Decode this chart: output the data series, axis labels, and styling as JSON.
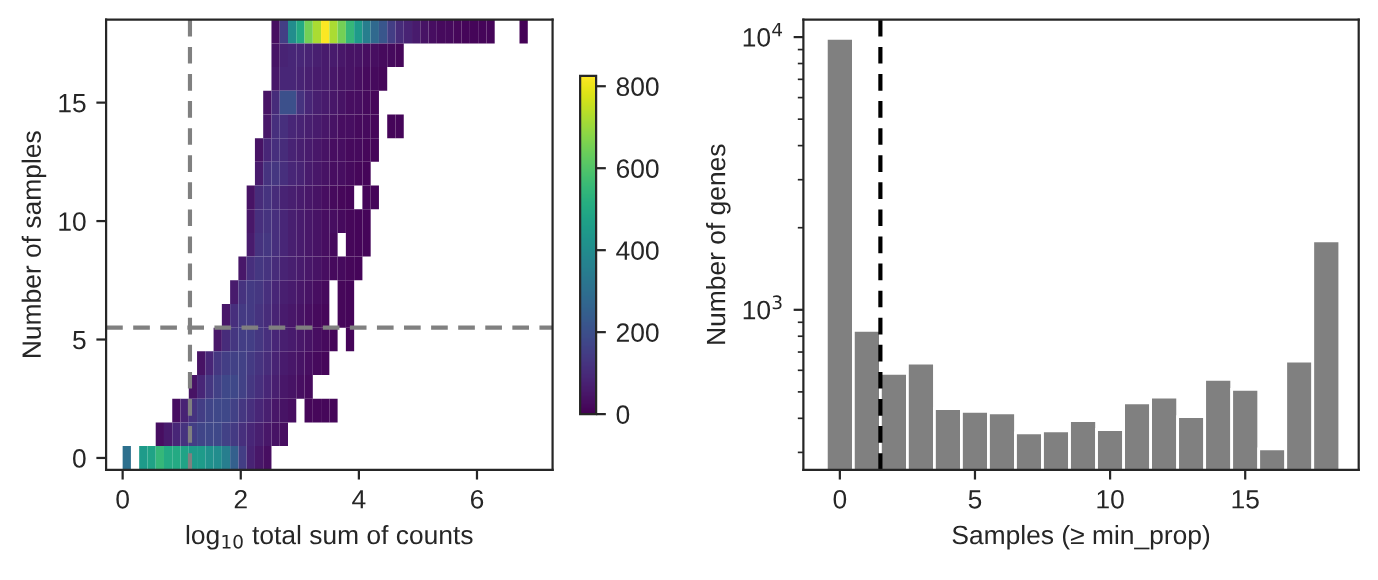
{
  "chart_data": [
    {
      "type": "heatmap",
      "xlabel": "log$_{10}$ total sum of counts",
      "ylabel": "Number of samples",
      "cells": [
        [
          null,
          null,
          null,
          null,
          null,
          null,
          null,
          null,
          null,
          null,
          null,
          null,
          null,
          null,
          null,
          null,
          null,
          null,
          null,
          null,
          30,
          150,
          400,
          500,
          650,
          720,
          820,
          720,
          650,
          550,
          450,
          350,
          280,
          220,
          150,
          100,
          80,
          60,
          40,
          30,
          20,
          20,
          15,
          10,
          10,
          10,
          10,
          null,
          null,
          null,
          5,
          null,
          null,
          null
        ],
        [
          null,
          null,
          null,
          null,
          null,
          null,
          null,
          null,
          null,
          null,
          null,
          null,
          null,
          null,
          null,
          null,
          null,
          null,
          null,
          null,
          40,
          80,
          90,
          90,
          80,
          70,
          60,
          60,
          50,
          40,
          40,
          30,
          30,
          20,
          20,
          15,
          null,
          null,
          null,
          null,
          null,
          null,
          null,
          null,
          null,
          null,
          null,
          null,
          null,
          null,
          null,
          null,
          null,
          null
        ],
        [
          null,
          null,
          null,
          null,
          null,
          null,
          null,
          null,
          null,
          null,
          null,
          null,
          null,
          null,
          null,
          null,
          null,
          null,
          null,
          null,
          50,
          90,
          90,
          80,
          70,
          60,
          60,
          50,
          40,
          40,
          30,
          20,
          20,
          15,
          null,
          null,
          null,
          null,
          null,
          null,
          null,
          null,
          null,
          null,
          null,
          null,
          null,
          null,
          null,
          null,
          null,
          null,
          null,
          null
        ],
        [
          null,
          null,
          null,
          null,
          null,
          null,
          null,
          null,
          null,
          null,
          null,
          null,
          null,
          null,
          null,
          null,
          null,
          null,
          null,
          40,
          100,
          200,
          200,
          120,
          90,
          70,
          60,
          50,
          40,
          30,
          30,
          20,
          15,
          null,
          null,
          null,
          null,
          null,
          null,
          null,
          null,
          null,
          null,
          null,
          null,
          null,
          null,
          null,
          null,
          null,
          null,
          null,
          null,
          null
        ],
        [
          null,
          null,
          null,
          null,
          null,
          null,
          null,
          null,
          null,
          null,
          null,
          null,
          null,
          null,
          null,
          null,
          null,
          null,
          null,
          50,
          110,
          110,
          90,
          80,
          70,
          60,
          50,
          40,
          30,
          30,
          20,
          20,
          15,
          null,
          10,
          10,
          null,
          null,
          null,
          null,
          null,
          null,
          null,
          null,
          null,
          null,
          null,
          null,
          null,
          null,
          null,
          null,
          null,
          null
        ],
        [
          null,
          null,
          null,
          null,
          null,
          null,
          null,
          null,
          null,
          null,
          null,
          null,
          null,
          null,
          null,
          null,
          null,
          null,
          40,
          90,
          110,
          100,
          80,
          70,
          60,
          50,
          40,
          30,
          30,
          20,
          20,
          15,
          10,
          null,
          null,
          null,
          null,
          null,
          null,
          null,
          null,
          null,
          null,
          null,
          null,
          null,
          null,
          null,
          null,
          null,
          null,
          null,
          null,
          null
        ],
        [
          null,
          null,
          null,
          null,
          null,
          null,
          null,
          null,
          null,
          null,
          null,
          null,
          null,
          null,
          null,
          null,
          null,
          null,
          60,
          120,
          130,
          110,
          90,
          80,
          60,
          50,
          40,
          30,
          30,
          20,
          15,
          10,
          null,
          null,
          null,
          null,
          null,
          null,
          null,
          null,
          null,
          null,
          null,
          null,
          null,
          null,
          null,
          null,
          null,
          null,
          null,
          null,
          null,
          null
        ],
        [
          null,
          null,
          null,
          null,
          null,
          null,
          null,
          null,
          null,
          null,
          null,
          null,
          null,
          null,
          null,
          null,
          null,
          40,
          100,
          120,
          100,
          80,
          70,
          60,
          50,
          40,
          30,
          20,
          15,
          10,
          null,
          10,
          10,
          null,
          null,
          null,
          null,
          null,
          null,
          null,
          null,
          null,
          null,
          null,
          null,
          null,
          null,
          null,
          null,
          null,
          null,
          null,
          null,
          null
        ],
        [
          null,
          null,
          null,
          null,
          null,
          null,
          null,
          null,
          null,
          null,
          null,
          null,
          null,
          null,
          null,
          null,
          null,
          50,
          110,
          120,
          110,
          90,
          70,
          60,
          50,
          40,
          30,
          30,
          20,
          15,
          10,
          10,
          null,
          null,
          null,
          null,
          null,
          null,
          null,
          null,
          null,
          null,
          null,
          null,
          null,
          null,
          null,
          null,
          null,
          null,
          null,
          null,
          null,
          null
        ],
        [
          null,
          null,
          null,
          null,
          null,
          null,
          null,
          null,
          null,
          null,
          null,
          null,
          null,
          null,
          null,
          null,
          null,
          60,
          120,
          130,
          110,
          90,
          70,
          60,
          50,
          40,
          30,
          20,
          null,
          15,
          10,
          10,
          null,
          null,
          null,
          null,
          null,
          null,
          null,
          null,
          null,
          null,
          null,
          null,
          null,
          null,
          null,
          null,
          null,
          null,
          null,
          null,
          null,
          null
        ],
        [
          null,
          null,
          null,
          null,
          null,
          null,
          null,
          null,
          null,
          null,
          null,
          null,
          null,
          null,
          null,
          null,
          50,
          110,
          130,
          120,
          100,
          80,
          70,
          60,
          50,
          40,
          30,
          20,
          20,
          15,
          10,
          null,
          null,
          null,
          null,
          null,
          null,
          null,
          null,
          null,
          null,
          null,
          null,
          null,
          null,
          null,
          null,
          null,
          null,
          null,
          null,
          null,
          null,
          null
        ],
        [
          null,
          null,
          null,
          null,
          null,
          null,
          null,
          null,
          null,
          null,
          null,
          null,
          null,
          null,
          null,
          60,
          120,
          140,
          130,
          110,
          90,
          70,
          60,
          50,
          40,
          30,
          20,
          null,
          15,
          10,
          null,
          null,
          null,
          null,
          null,
          null,
          null,
          null,
          null,
          null,
          null,
          null,
          null,
          null,
          null,
          null,
          null,
          null,
          null,
          null,
          null,
          null,
          null,
          null
        ],
        [
          null,
          null,
          null,
          null,
          null,
          null,
          null,
          null,
          null,
          null,
          null,
          null,
          null,
          null,
          50,
          110,
          140,
          140,
          120,
          100,
          80,
          60,
          50,
          40,
          30,
          20,
          15,
          null,
          15,
          10,
          null,
          null,
          null,
          null,
          null,
          null,
          null,
          null,
          null,
          null,
          null,
          null,
          null,
          null,
          null,
          null,
          null,
          null,
          null,
          null,
          null,
          null,
          null,
          null
        ],
        [
          null,
          null,
          null,
          null,
          null,
          null,
          null,
          null,
          null,
          null,
          null,
          null,
          null,
          50,
          100,
          130,
          150,
          150,
          130,
          110,
          90,
          70,
          60,
          50,
          40,
          30,
          20,
          15,
          null,
          10,
          null,
          null,
          null,
          null,
          null,
          null,
          null,
          null,
          null,
          null,
          null,
          null,
          null,
          null,
          null,
          null,
          null,
          null,
          null,
          null,
          null,
          null,
          null,
          null
        ],
        [
          null,
          null,
          null,
          null,
          null,
          null,
          null,
          null,
          null,
          null,
          null,
          40,
          90,
          130,
          150,
          160,
          160,
          140,
          120,
          100,
          80,
          60,
          50,
          40,
          30,
          20,
          15,
          null,
          null,
          null,
          null,
          null,
          null,
          null,
          null,
          null,
          null,
          null,
          null,
          null,
          null,
          null,
          null,
          null,
          null,
          null,
          null,
          null,
          null,
          null,
          null,
          null,
          null,
          null
        ],
        [
          null,
          null,
          null,
          null,
          null,
          null,
          null,
          null,
          null,
          null,
          40,
          90,
          130,
          160,
          180,
          180,
          160,
          130,
          110,
          90,
          70,
          50,
          40,
          30,
          20,
          null,
          null,
          null,
          null,
          null,
          null,
          null,
          null,
          null,
          null,
          null,
          null,
          null,
          null,
          null,
          null,
          null,
          null,
          null,
          null,
          null,
          null,
          null,
          null,
          null,
          null,
          null,
          null,
          null
        ],
        [
          null,
          null,
          null,
          null,
          null,
          null,
          null,
          null,
          30,
          80,
          120,
          150,
          170,
          180,
          180,
          160,
          130,
          110,
          90,
          70,
          50,
          40,
          30,
          null,
          15,
          15,
          15,
          15,
          null,
          null,
          null,
          null,
          null,
          null,
          null,
          null,
          null,
          null,
          null,
          null,
          null,
          null,
          null,
          null,
          null,
          null,
          null,
          null,
          null,
          null,
          null,
          null,
          null,
          null
        ],
        [
          null,
          null,
          null,
          null,
          null,
          null,
          30,
          60,
          90,
          120,
          150,
          170,
          180,
          180,
          160,
          140,
          110,
          90,
          70,
          50,
          40,
          30,
          null,
          null,
          null,
          null,
          null,
          null,
          null,
          null,
          null,
          null,
          null,
          null,
          null,
          null,
          null,
          null,
          null,
          null,
          null,
          null,
          null,
          null,
          null,
          null,
          null,
          null,
          null,
          null,
          null,
          null,
          null,
          null
        ],
        [
          null,
          null,
          300,
          null,
          450,
          480,
          550,
          500,
          500,
          480,
          450,
          450,
          420,
          400,
          350,
          250,
          150,
          80,
          50,
          30,
          null,
          null,
          null,
          null,
          null,
          null,
          null,
          null,
          null,
          null,
          null,
          null,
          null,
          null,
          null,
          null,
          null,
          null,
          null,
          null,
          null,
          null,
          null,
          null,
          null,
          null,
          null,
          null,
          null,
          null,
          null,
          null,
          null,
          null
        ]
      ],
      "clim": [
        0,
        825
      ],
      "cticks": [
        0,
        200,
        400,
        600,
        800
      ],
      "xlim": [
        -0.28,
        7.28
      ],
      "xticks": [
        0,
        2,
        4,
        6
      ],
      "ylim": [
        -0.5,
        18.5
      ],
      "yticks": [
        0,
        5,
        10,
        15
      ],
      "ref_lines": [
        {
          "axis": "x",
          "value": 1.14,
          "color": "#808080",
          "line_style": "dashed"
        },
        {
          "axis": "y",
          "value": 5.5,
          "color": "#808080",
          "line_style": "dashed"
        }
      ]
    },
    {
      "type": "histogram",
      "xlabel": "Samples (≥ min_prop)",
      "ylabel": "Number of genes",
      "color": "#808080",
      "log": "y",
      "bins": [
        -0.5,
        0.5,
        1.5,
        2.5,
        3.5,
        4.5,
        5.5,
        6.5,
        7.5,
        8.5,
        9.5,
        10.5,
        11.5,
        12.5,
        13.5,
        14.5,
        15.5,
        16.5,
        17.5,
        18.5
      ],
      "values": [
        9890,
        840,
        585,
        637,
        434,
        424,
        419,
        354,
        360,
        392,
        364,
        456,
        478,
        406,
        556,
        511,
        309,
        648,
        1790
      ],
      "xlim": [
        -1.35,
        19.2
      ],
      "xticks": [
        0,
        5,
        10,
        15
      ],
      "ylim": [
        259,
        11580
      ],
      "yticks": [
        {
          "value": 1000,
          "label": "10$^{3}$"
        },
        {
          "value": 10000,
          "label": "10$^{4}$"
        }
      ],
      "ref_lines": [
        {
          "axis": "x",
          "value": 1.5,
          "color": "#000000",
          "line_style": "dashed"
        }
      ]
    }
  ]
}
